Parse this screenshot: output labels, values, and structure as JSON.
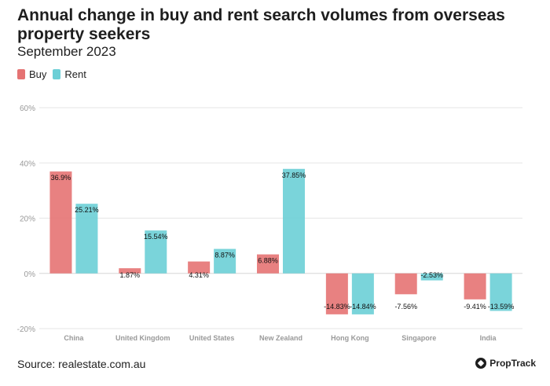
{
  "header": {
    "title": "Annual change in buy and rent search volumes from overseas property seekers",
    "subtitle": "September 2023"
  },
  "footer": {
    "source": "Source: realestate.com.au",
    "logo_text": "PropTrack"
  },
  "colors": {
    "buy": "#e57373",
    "rent": "#6ccfd6",
    "grid": "#e6e6e6",
    "axis_text": "#999999"
  },
  "chart_data": {
    "type": "bar",
    "categories": [
      "China",
      "United Kingdom",
      "United States",
      "New Zealand",
      "Hong Kong",
      "Singapore",
      "India"
    ],
    "series": [
      {
        "name": "Buy",
        "values": [
          36.9,
          1.87,
          4.31,
          6.88,
          -14.83,
          -7.56,
          -9.41
        ],
        "labels": [
          "36.9%",
          "1.87%",
          "4.31%",
          "6.88%",
          "-14.83%",
          "-7.56%",
          "-9.41%"
        ]
      },
      {
        "name": "Rent",
        "values": [
          25.21,
          15.54,
          8.87,
          37.85,
          -14.84,
          -2.53,
          -13.59
        ],
        "labels": [
          "25.21%",
          "15.54%",
          "8.87%",
          "37.85%",
          "-14.84%",
          "-2.53%",
          "-13.59%"
        ]
      }
    ],
    "y_ticks": [
      60,
      40,
      20,
      0,
      -20
    ],
    "y_tick_labels": [
      "60%",
      "40%",
      "20%",
      "0%",
      "-20%"
    ],
    "ylim": [
      -20,
      60
    ],
    "grid": true,
    "legend_position": "top-left"
  }
}
